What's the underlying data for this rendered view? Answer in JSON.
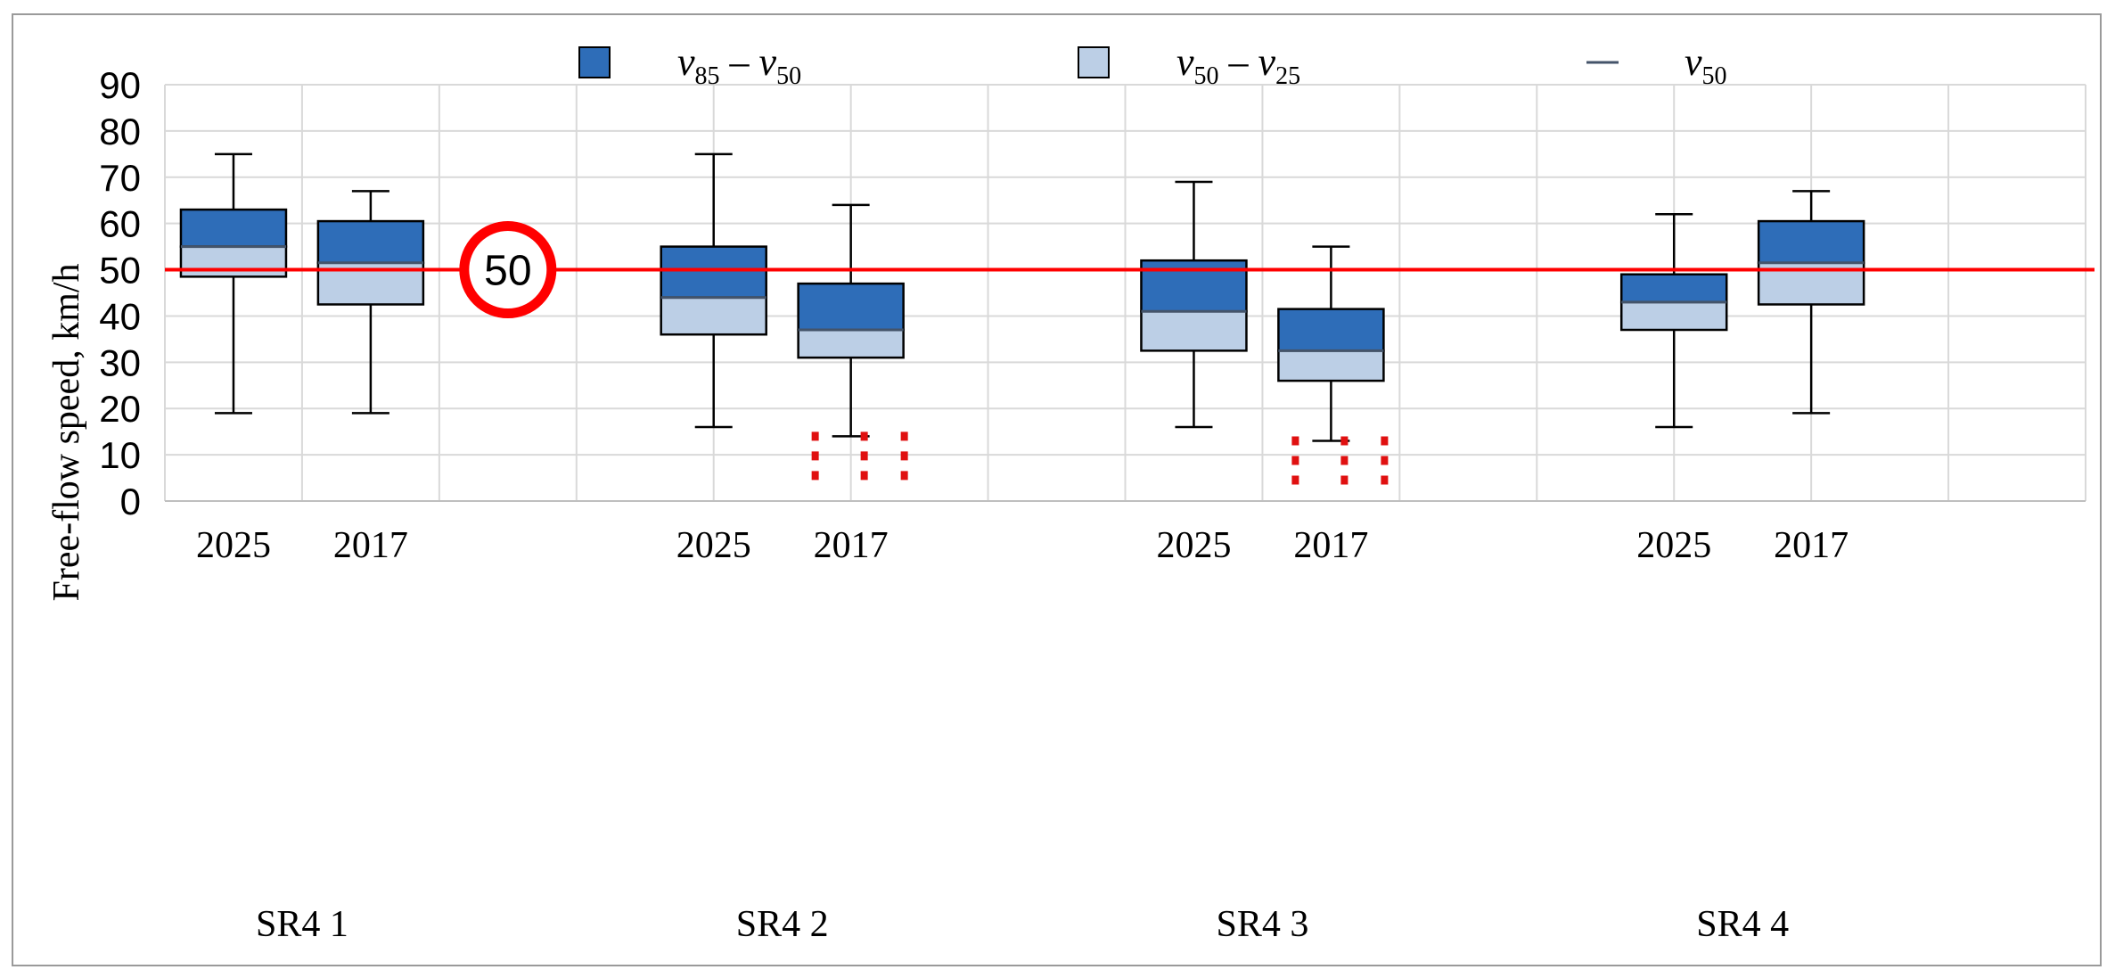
{
  "chart_data": {
    "type": "box",
    "ylabel": "Free-flow speed, km/h",
    "ylim": [
      0,
      90
    ],
    "yticks": [
      0,
      10,
      20,
      30,
      40,
      50,
      60,
      70,
      80,
      90
    ],
    "grid": true,
    "legend_position": "top",
    "legend": [
      {
        "key": "upper",
        "label_main": "v",
        "label_sub1": "85",
        "label_mid": " – v",
        "label_sub2": "50",
        "color": "#2E6DB8"
      },
      {
        "key": "lower",
        "label_main": "v",
        "label_sub1": "50",
        "label_mid": " – v",
        "label_sub2": "25",
        "color": "#BCCFE6"
      },
      {
        "key": "median",
        "label_main": "v",
        "label_sub1": "50",
        "label_mid": "",
        "label_sub2": "",
        "color": "#44546A"
      }
    ],
    "groups": [
      {
        "label": "SR4 1",
        "boxes": [
          {
            "year": "2025",
            "min": 19,
            "q1": 48.5,
            "median": 55,
            "q3": 63,
            "max": 75
          },
          {
            "year": "2017",
            "min": 19,
            "q1": 42.5,
            "median": 51.5,
            "q3": 60.5,
            "max": 67
          }
        ]
      },
      {
        "label": "SR4 2",
        "boxes": [
          {
            "year": "2025",
            "min": 16,
            "q1": 36,
            "median": 44,
            "q3": 55,
            "max": 75
          },
          {
            "year": "2017",
            "min": 14,
            "q1": 31,
            "median": 37,
            "q3": 47,
            "max": 64
          }
        ]
      },
      {
        "label": "SR4 3",
        "boxes": [
          {
            "year": "2025",
            "min": 16,
            "q1": 32.5,
            "median": 41,
            "q3": 52,
            "max": 69
          },
          {
            "year": "2017",
            "min": 13,
            "q1": 26,
            "median": 32.5,
            "q3": 41.5,
            "max": 55
          }
        ]
      },
      {
        "label": "SR4 4",
        "boxes": [
          {
            "year": "2025",
            "min": 16,
            "q1": 37,
            "median": 43,
            "q3": 49,
            "max": 62
          },
          {
            "year": "2017",
            "min": 19,
            "q1": 42.5,
            "median": 51.5,
            "q3": 60.5,
            "max": 67
          }
        ]
      }
    ],
    "speed_limit": {
      "value": 50,
      "sign_text": "50",
      "color": "#FF0000"
    },
    "annotations": [
      {
        "type": "red-dotted-marks",
        "group": "SR4 2",
        "year": "2017",
        "from": 0,
        "to": 14
      },
      {
        "type": "red-dotted-marks",
        "group": "SR4 3",
        "year": "2017",
        "from": 0,
        "to": 13
      }
    ]
  }
}
